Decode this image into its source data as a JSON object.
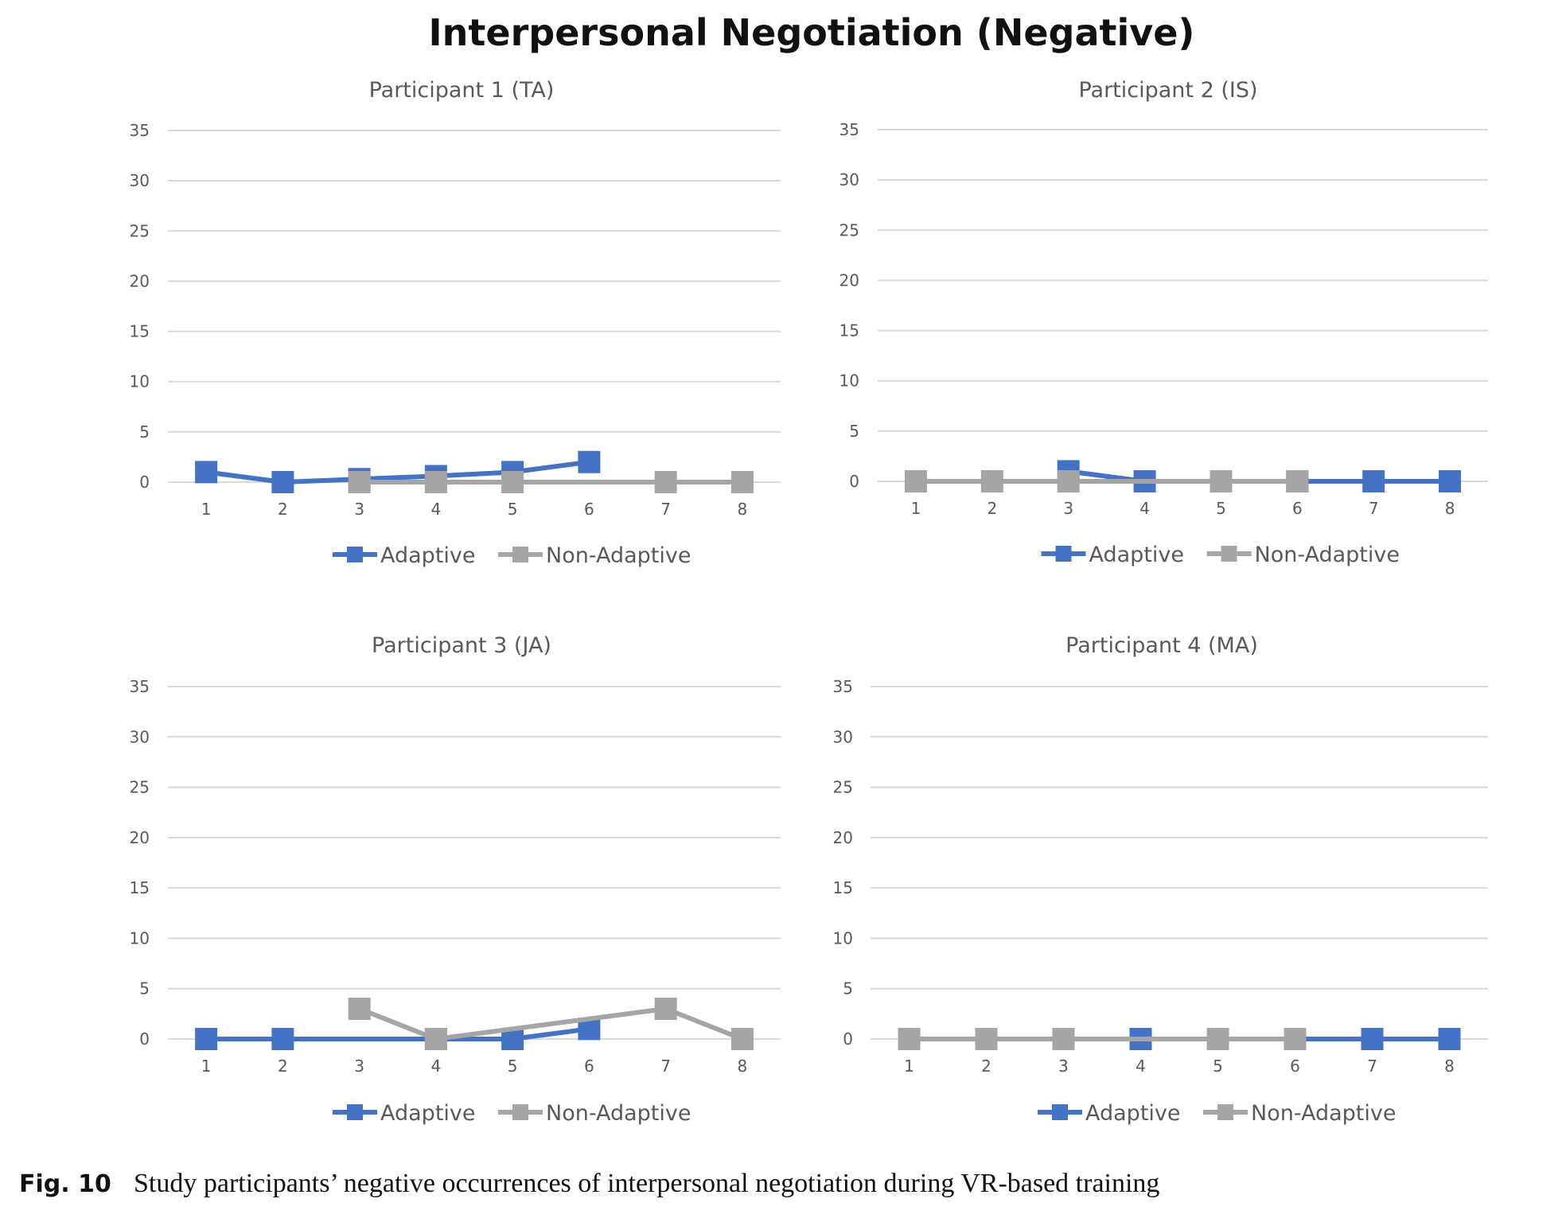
{
  "title": "Interpersonal Negotiation (Negative)",
  "caption": {
    "label": "Fig. 10",
    "text": "Study participants’ negative occurrences of interpersonal negotiation during VR-based training"
  },
  "colors": {
    "adaptive": "#4472C4",
    "non_adaptive": "#A5A5A5",
    "grid": "#D9D9D9",
    "text": "#595959"
  },
  "chart_data": [
    {
      "type": "line",
      "title": "Participant 1 (TA)",
      "categories": [
        "1",
        "2",
        "3",
        "4",
        "5",
        "6",
        "7",
        "8"
      ],
      "ylim": [
        0,
        35
      ],
      "yticks": [
        0,
        5,
        10,
        15,
        20,
        25,
        30,
        35
      ],
      "grid": true,
      "legend": "bottom",
      "series": [
        {
          "name": "Adaptive",
          "color": "#4472C4",
          "values": [
            1,
            0,
            0.3,
            0.6,
            1,
            2,
            null,
            null
          ]
        },
        {
          "name": "Non-Adaptive",
          "color": "#A5A5A5",
          "values": [
            null,
            null,
            0,
            0,
            0,
            null,
            0,
            0
          ]
        }
      ]
    },
    {
      "type": "line",
      "title": "Participant 2 (IS)",
      "categories": [
        "1",
        "2",
        "3",
        "4",
        "5",
        "6",
        "7",
        "8"
      ],
      "ylim": [
        0,
        35
      ],
      "yticks": [
        0,
        5,
        10,
        15,
        20,
        25,
        30,
        35
      ],
      "grid": true,
      "legend": "bottom",
      "series": [
        {
          "name": "Adaptive",
          "color": "#4472C4",
          "values": [
            null,
            null,
            1,
            0,
            null,
            0,
            0,
            0
          ]
        },
        {
          "name": "Non-Adaptive",
          "color": "#A5A5A5",
          "values": [
            0,
            0,
            0,
            null,
            0,
            0,
            null,
            null
          ]
        }
      ]
    },
    {
      "type": "line",
      "title": "Participant 3 (JA)",
      "categories": [
        "1",
        "2",
        "3",
        "4",
        "5",
        "6",
        "7",
        "8"
      ],
      "ylim": [
        0,
        35
      ],
      "yticks": [
        0,
        5,
        10,
        15,
        20,
        25,
        30,
        35
      ],
      "grid": true,
      "legend": "bottom",
      "series": [
        {
          "name": "Adaptive",
          "color": "#4472C4",
          "values": [
            0,
            0,
            null,
            0,
            0,
            1,
            null,
            null
          ]
        },
        {
          "name": "Non-Adaptive",
          "color": "#A5A5A5",
          "values": [
            null,
            null,
            3,
            0,
            null,
            null,
            3,
            0
          ]
        }
      ]
    },
    {
      "type": "line",
      "title": "Participant 4 (MA)",
      "categories": [
        "1",
        "2",
        "3",
        "4",
        "5",
        "6",
        "7",
        "8"
      ],
      "ylim": [
        0,
        35
      ],
      "yticks": [
        0,
        5,
        10,
        15,
        20,
        25,
        30,
        35
      ],
      "grid": true,
      "legend": "bottom",
      "series": [
        {
          "name": "Adaptive",
          "color": "#4472C4",
          "values": [
            null,
            null,
            0,
            0,
            null,
            null,
            0,
            0
          ]
        },
        {
          "name": "Non-Adaptive",
          "color": "#A5A5A5",
          "values": [
            0,
            0,
            0,
            null,
            0,
            0,
            null,
            null
          ]
        }
      ]
    }
  ]
}
